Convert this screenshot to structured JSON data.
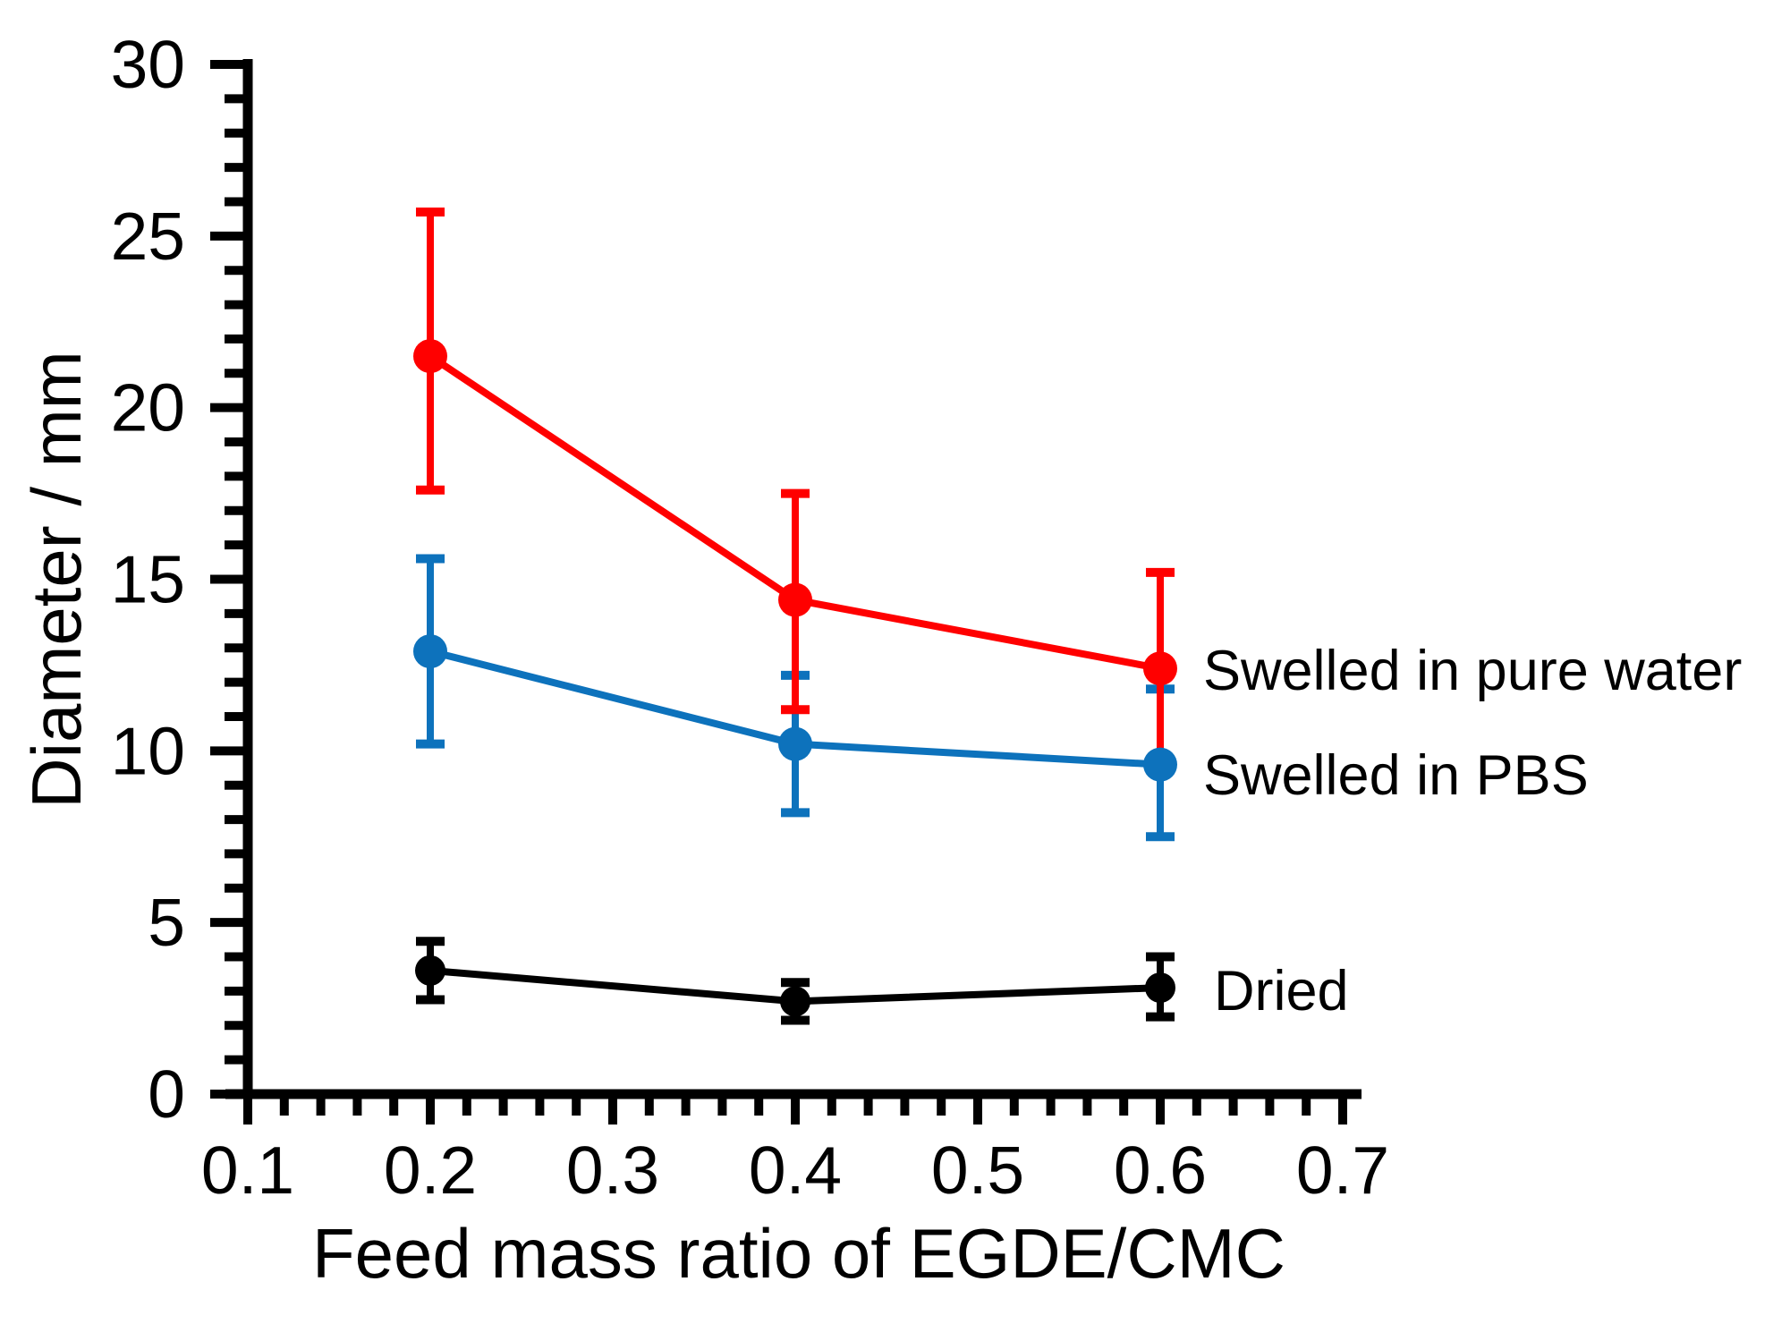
{
  "chart_data": {
    "type": "line",
    "title": "",
    "xlabel": "Feed mass ratio of EGDE/CMC",
    "ylabel": "Diameter / mm",
    "xlim": [
      0.095,
      0.71
    ],
    "ylim": [
      0,
      30
    ],
    "grid": false,
    "legend_position": "inline-right-of-last-point",
    "x_ticks_major": [
      0.1,
      0.2,
      0.3,
      0.4,
      0.5,
      0.6,
      0.7
    ],
    "x_tick_labels": [
      "0.1",
      "0.2",
      "0.3",
      "0.4",
      "0.5",
      "0.6",
      "0.7"
    ],
    "x_minor_tick_step": 0.02,
    "y_ticks_major": [
      0,
      5,
      10,
      15,
      20,
      25,
      30
    ],
    "y_tick_labels": [
      "0",
      "5",
      "10",
      "15",
      "20",
      "25",
      "30"
    ],
    "y_minor_tick_step": 1,
    "series": [
      {
        "name": "Swelled in pure water",
        "color": "#ff0000",
        "marker": "circle",
        "x": [
          0.2,
          0.4,
          0.6
        ],
        "y": [
          21.5,
          14.4,
          12.4
        ],
        "err_plus": [
          4.2,
          3.1,
          2.8
        ],
        "err_minus": [
          3.9,
          3.2,
          2.8
        ]
      },
      {
        "name": "Swelled in PBS",
        "color": "#0d72bc",
        "marker": "circle",
        "x": [
          0.2,
          0.4,
          0.6
        ],
        "y": [
          12.9,
          10.2,
          9.6
        ],
        "err_plus": [
          2.7,
          2.0,
          2.2
        ],
        "err_minus": [
          2.7,
          2.0,
          2.1
        ]
      },
      {
        "name": "Dried",
        "color": "#000000",
        "marker": "circle",
        "x": [
          0.2,
          0.4,
          0.6
        ],
        "y": [
          3.6,
          2.7,
          3.1
        ],
        "err_plus": [
          0.85,
          0.55,
          0.9
        ],
        "err_minus": [
          0.85,
          0.55,
          0.85
        ]
      }
    ]
  }
}
